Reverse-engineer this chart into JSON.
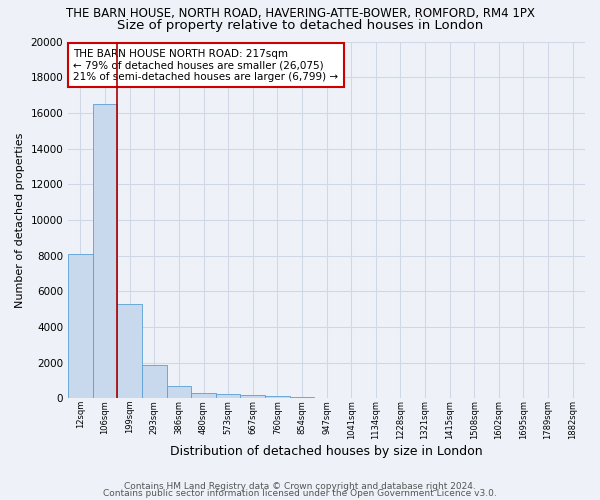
{
  "title": "THE BARN HOUSE, NORTH ROAD, HAVERING-ATTE-BOWER, ROMFORD, RM4 1PX",
  "subtitle": "Size of property relative to detached houses in London",
  "xlabel": "Distribution of detached houses by size in London",
  "ylabel": "Number of detached properties",
  "footer1": "Contains HM Land Registry data © Crown copyright and database right 2024.",
  "footer2": "Contains public sector information licensed under the Open Government Licence v3.0.",
  "bin_labels": [
    "12sqm",
    "106sqm",
    "199sqm",
    "293sqm",
    "386sqm",
    "480sqm",
    "573sqm",
    "667sqm",
    "760sqm",
    "854sqm",
    "947sqm",
    "1041sqm",
    "1134sqm",
    "1228sqm",
    "1321sqm",
    "1415sqm",
    "1508sqm",
    "1602sqm",
    "1695sqm",
    "1789sqm",
    "1882sqm"
  ],
  "bar_heights": [
    8100,
    16500,
    5300,
    1850,
    700,
    300,
    225,
    200,
    150,
    80,
    50,
    30,
    20,
    15,
    10,
    8,
    6,
    5,
    4,
    3,
    0
  ],
  "bar_color": "#c8d9ee",
  "bar_edge_color": "#5a9fd4",
  "background_color": "#eef2f8",
  "grid_color": "#d0d8e8",
  "red_line_color": "#aa0000",
  "annotation_text": "THE BARN HOUSE NORTH ROAD: 217sqm\n← 79% of detached houses are smaller (26,075)\n21% of semi-detached houses are larger (6,799) →",
  "annotation_box_color": "#ffffff",
  "annotation_box_edge": "#cc0000",
  "ylim": [
    0,
    20000
  ],
  "yticks": [
    0,
    2000,
    4000,
    6000,
    8000,
    10000,
    12000,
    14000,
    16000,
    18000,
    20000
  ],
  "title_fontsize": 8.5,
  "subtitle_fontsize": 9.5,
  "annotation_fontsize": 7.5,
  "footer_fontsize": 6.5,
  "ylabel_fontsize": 8,
  "xlabel_fontsize": 9
}
